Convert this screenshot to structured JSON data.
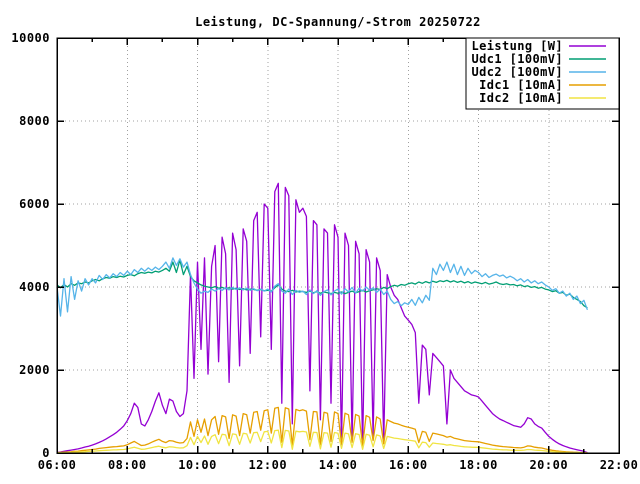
{
  "chart_data": {
    "type": "line",
    "title": "Leistung, DC-Spannung/-Strom 20250722",
    "background": "#ffffff",
    "border_color": "#000000",
    "grid_color": "#a0a0a0",
    "grid_style": "dotted-major",
    "legend_position": "top-right-inside-boxed",
    "x_axis": {
      "label": "",
      "unit": "time",
      "lim_hours": [
        6,
        22
      ],
      "tick_step_hours": 2,
      "minor_tick_step_hours": 1,
      "tick_hours": [
        6,
        8,
        10,
        12,
        14,
        16,
        18,
        20,
        22
      ],
      "tick_labels": [
        "06:00",
        "08:00",
        "10:00",
        "12:00",
        "14:00",
        "16:00",
        "18:00",
        "20:00",
        "22:00"
      ]
    },
    "y_axis": {
      "label": "",
      "lim": [
        0,
        10000
      ],
      "tick_step": 2000,
      "tick_values": [
        0,
        2000,
        4000,
        6000,
        8000,
        10000
      ],
      "tick_labels": [
        "0",
        "2000",
        "4000",
        "6000",
        "8000",
        "10000"
      ]
    },
    "x_start": 6.0,
    "x_step_hours": 0.1,
    "x_end": 21.1,
    "series": [
      {
        "name": "Leistung [W]",
        "color": "#9400d3",
        "values": [
          15,
          25,
          40,
          55,
          70,
          85,
          100,
          120,
          145,
          165,
          190,
          220,
          255,
          295,
          340,
          390,
          440,
          500,
          570,
          650,
          780,
          950,
          1200,
          1100,
          700,
          650,
          800,
          1000,
          1250,
          1450,
          1150,
          950,
          1300,
          1250,
          1000,
          880,
          950,
          1500,
          4300,
          1800,
          4600,
          2500,
          4700,
          1900,
          4500,
          5000,
          2200,
          5200,
          4800,
          1700,
          5300,
          4900,
          2100,
          5400,
          5100,
          2400,
          5600,
          5800,
          2800,
          6000,
          5900,
          2500,
          6300,
          6500,
          1200,
          6400,
          6200,
          700,
          6100,
          5800,
          5900,
          5700,
          1500,
          5600,
          5500,
          800,
          5400,
          5300,
          1200,
          5500,
          5200,
          200,
          5300,
          5000,
          300,
          5100,
          4800,
          150,
          4900,
          4600,
          400,
          4700,
          4400,
          250,
          4300,
          4000,
          3800,
          3700,
          3500,
          3300,
          3200,
          3100,
          2900,
          1200,
          2600,
          2500,
          1400,
          2400,
          2300,
          2200,
          2100,
          700,
          2000,
          1800,
          1700,
          1600,
          1500,
          1450,
          1400,
          1380,
          1350,
          1250,
          1150,
          1050,
          950,
          880,
          820,
          780,
          740,
          700,
          660,
          640,
          620,
          700,
          850,
          820,
          700,
          640,
          600,
          500,
          400,
          330,
          270,
          220,
          180,
          150,
          120,
          100,
          80,
          60,
          40,
          10
        ]
      },
      {
        "name": "Udc1 [100mV]",
        "color": "#009e73",
        "values": [
          4050,
          3980,
          4060,
          4000,
          4080,
          4040,
          4100,
          4080,
          4120,
          4100,
          4150,
          4180,
          4150,
          4200,
          4230,
          4210,
          4250,
          4230,
          4260,
          4240,
          4280,
          4300,
          4270,
          4320,
          4350,
          4330,
          4360,
          4340,
          4380,
          4360,
          4400,
          4450,
          4380,
          4600,
          4350,
          4650,
          4300,
          4500,
          4250,
          4150,
          4100,
          4050,
          4020,
          4000,
          3980,
          4010,
          3970,
          3990,
          3960,
          3980,
          3950,
          3970,
          3940,
          3960,
          3930,
          3950,
          3940,
          3920,
          3940,
          3910,
          3920,
          3900,
          3980,
          4050,
          3950,
          3900,
          3890,
          3920,
          3880,
          3900,
          3890,
          3870,
          3900,
          3860,
          3890,
          3850,
          3880,
          3860,
          3840,
          3870,
          3850,
          3880,
          3840,
          3870,
          3900,
          3860,
          3890,
          3920,
          3880,
          3910,
          3930,
          3960,
          3940,
          3990,
          3960,
          4010,
          4040,
          4020,
          4060,
          4040,
          4080,
          4100,
          4070,
          4120,
          4090,
          4130,
          4100,
          4140,
          4110,
          4150,
          4130,
          4160,
          4120,
          4150,
          4110,
          4140,
          4100,
          4130,
          4090,
          4120,
          4100,
          4080,
          4110,
          4070,
          4090,
          4120,
          4080,
          4060,
          4080,
          4050,
          4060,
          4030,
          4050,
          4010,
          4030,
          3990,
          4010,
          3970,
          3990,
          3950,
          3930,
          3890,
          3910,
          3850,
          3870,
          3800,
          3830,
          3750,
          3700,
          3650,
          3550,
          3500
        ]
      },
      {
        "name": "Udc2 [100mV]",
        "color": "#56b4e9",
        "values": [
          4000,
          3300,
          4200,
          3400,
          4250,
          3700,
          4150,
          3900,
          4200,
          4050,
          4200,
          4100,
          4280,
          4180,
          4300,
          4220,
          4320,
          4250,
          4350,
          4280,
          4380,
          4300,
          4420,
          4350,
          4450,
          4380,
          4460,
          4400,
          4480,
          4420,
          4500,
          4600,
          4450,
          4700,
          4520,
          4680,
          4480,
          4600,
          4300,
          4100,
          3950,
          3850,
          3900,
          3870,
          3950,
          3900,
          3960,
          3920,
          3980,
          3930,
          3990,
          3940,
          3980,
          3930,
          3970,
          3920,
          3960,
          3910,
          3950,
          3900,
          3950,
          3880,
          4020,
          4080,
          3900,
          3850,
          3950,
          3820,
          3920,
          3870,
          3900,
          3820,
          3930,
          3840,
          3910,
          3800,
          3890,
          3930,
          3810,
          3900,
          3950,
          3830,
          3960,
          3880,
          3990,
          3850,
          3970,
          3900,
          4000,
          3920,
          3980,
          3870,
          3950,
          3820,
          3900,
          3700,
          3600,
          3650,
          3550,
          3620,
          3580,
          3700,
          3560,
          3750,
          3620,
          3800,
          3680,
          4450,
          4300,
          4550,
          4400,
          4600,
          4350,
          4550,
          4300,
          4500,
          4280,
          4450,
          4320,
          4400,
          4350,
          4250,
          4320,
          4230,
          4280,
          4310,
          4260,
          4290,
          4220,
          4260,
          4220,
          4150,
          4200,
          4120,
          4180,
          4100,
          4150,
          4080,
          4120,
          4050,
          4000,
          3920,
          3960,
          3850,
          3900,
          3780,
          3850,
          3700,
          3780,
          3600,
          3680,
          3450
        ]
      },
      {
        "name": "Idc1 [10mA]",
        "color": "#e69f00",
        "values": [
          10,
          15,
          20,
          25,
          30,
          40,
          45,
          55,
          65,
          75,
          85,
          95,
          110,
          120,
          130,
          140,
          150,
          155,
          165,
          170,
          200,
          240,
          280,
          230,
          180,
          190,
          220,
          260,
          300,
          330,
          280,
          250,
          300,
          290,
          260,
          240,
          250,
          350,
          750,
          400,
          800,
          500,
          820,
          420,
          800,
          880,
          450,
          900,
          870,
          350,
          920,
          890,
          420,
          950,
          920,
          480,
          980,
          1000,
          550,
          1020,
          1040,
          480,
          1080,
          1100,
          260,
          1090,
          1060,
          180,
          1050,
          1020,
          1040,
          1010,
          320,
          1000,
          990,
          200,
          980,
          960,
          280,
          990,
          950,
          220,
          960,
          920,
          260,
          930,
          890,
          180,
          900,
          860,
          300,
          870,
          820,
          220,
          800,
          760,
          720,
          700,
          670,
          640,
          620,
          600,
          570,
          250,
          520,
          500,
          280,
          480,
          460,
          440,
          420,
          380,
          400,
          360,
          340,
          320,
          300,
          290,
          280,
          275,
          270,
          250,
          230,
          210,
          190,
          175,
          165,
          155,
          148,
          140,
          132,
          128,
          124,
          140,
          170,
          164,
          140,
          128,
          120,
          100,
          80,
          66,
          54,
          44,
          36,
          30,
          24,
          20,
          16,
          12,
          8,
          2
        ]
      },
      {
        "name": "Idc2 [10mA]",
        "color": "#f0e442",
        "values": [
          5,
          8,
          10,
          13,
          15,
          20,
          23,
          28,
          32,
          38,
          42,
          48,
          55,
          60,
          65,
          70,
          75,
          78,
          82,
          85,
          100,
          120,
          140,
          115,
          90,
          95,
          110,
          130,
          150,
          165,
          140,
          125,
          150,
          145,
          130,
          120,
          125,
          175,
          375,
          200,
          400,
          250,
          410,
          210,
          400,
          440,
          225,
          450,
          435,
          175,
          460,
          445,
          210,
          475,
          460,
          240,
          490,
          500,
          275,
          510,
          520,
          240,
          540,
          550,
          130,
          545,
          530,
          90,
          525,
          510,
          520,
          505,
          160,
          500,
          495,
          100,
          490,
          480,
          140,
          495,
          475,
          110,
          480,
          460,
          130,
          465,
          445,
          90,
          450,
          430,
          150,
          435,
          410,
          110,
          400,
          380,
          360,
          350,
          335,
          320,
          310,
          300,
          285,
          125,
          260,
          250,
          140,
          240,
          230,
          220,
          210,
          190,
          200,
          180,
          170,
          160,
          150,
          145,
          140,
          138,
          135,
          125,
          115,
          105,
          95,
          88,
          82,
          78,
          74,
          70,
          66,
          64,
          62,
          70,
          85,
          82,
          70,
          64,
          60,
          50,
          40,
          33,
          27,
          22,
          18,
          15,
          12,
          10,
          8,
          6,
          4,
          1
        ]
      }
    ]
  }
}
